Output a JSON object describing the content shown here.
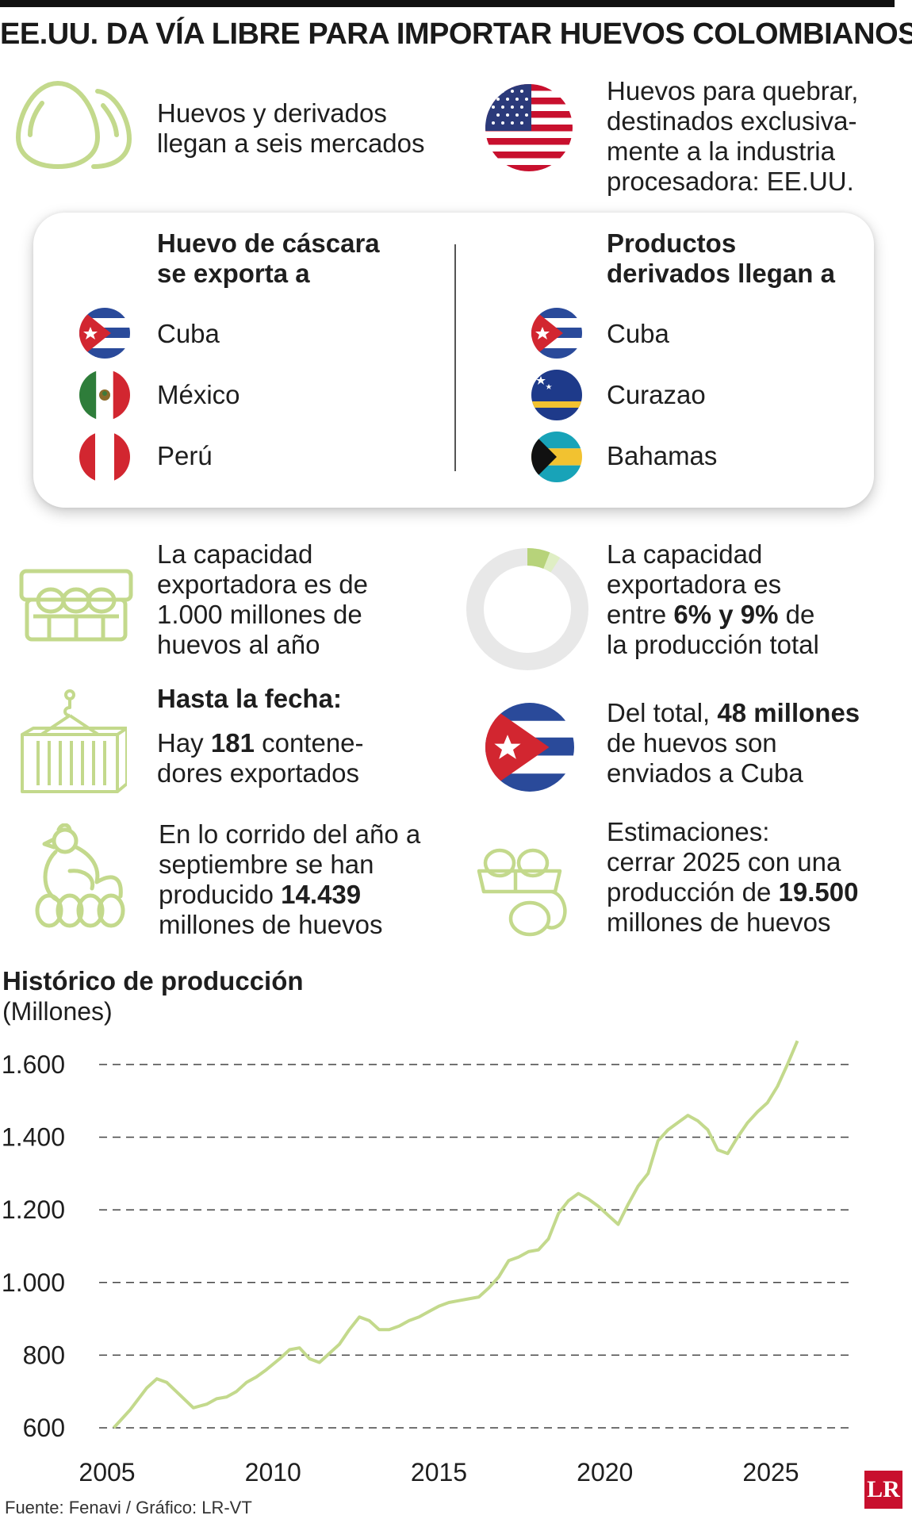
{
  "title": "EE.UU. DA VÍA LIBRE PARA IMPORTAR HUEVOS COLOMBIANOS",
  "top_left": {
    "icon": "eggs-icon",
    "text_l1": "Huevos y derivados",
    "text_l2": "llegan a seis mercados"
  },
  "top_right": {
    "icon": "usa-flag-icon",
    "l1": "Huevos para quebrar,",
    "l2": "destinados exclusiva-",
    "l3": "mente a la industria",
    "l4": "procesadora: EE.UU."
  },
  "card": {
    "left_header_l1": "Huevo de cáscara",
    "left_header_l2": "se exporta a",
    "right_header_l1": "Productos",
    "right_header_l2": "derivados llegan a",
    "left_countries": [
      "Cuba",
      "México",
      "Perú"
    ],
    "right_countries": [
      "Cuba",
      "Curazao",
      "Bahamas"
    ]
  },
  "facts": {
    "capacity_l1": "La capacidad",
    "capacity_l2": "exportadora es de",
    "capacity_l3": "1.000 millones de",
    "capacity_l4": "huevos al año",
    "share_l1": "La capacidad",
    "share_l2": "exportadora es",
    "share_pre": "entre ",
    "share_bold": "6% y 9%",
    "share_post": " de",
    "share_l4": "la producción total",
    "share_low_pct": 6,
    "share_high_pct": 9,
    "todate_header": "Hasta la fecha:",
    "containers_pre": "Hay ",
    "containers_bold": "181",
    "containers_post": " contene-",
    "containers_l2": "dores exportados",
    "cuba_pre": "Del total, ",
    "cuba_bold": "48 millones",
    "cuba_l2": "de huevos son",
    "cuba_l3": "enviados a Cuba",
    "produced_l1": "En lo corrido del año a",
    "produced_l2": "septiembre se han",
    "produced_pre": "producido ",
    "produced_bold": "14.439",
    "produced_l4": "millones de huevos",
    "estim_l1": "Estimaciones:",
    "estim_l2": "cerrar 2025 con una",
    "estim_pre": "producción de ",
    "estim_bold": "19.500",
    "estim_l4": "millones de huevos"
  },
  "colors": {
    "accent_green": "#c3d98c",
    "ring_gray": "#e8e8e8",
    "text": "#1e1e1e",
    "logo_red": "#c8102e"
  },
  "chart_data": {
    "type": "line",
    "title": "Histórico de producción",
    "subtitle": "(Millones)",
    "xlabel": "",
    "ylabel": "",
    "xlim": [
      2005,
      2027
    ],
    "ylim": [
      600,
      1700
    ],
    "yticks": [
      600,
      800,
      1000,
      1200,
      1400,
      1600
    ],
    "ytick_labels": [
      "600",
      "800",
      "1.000",
      "1.200",
      "1.400",
      "1.600"
    ],
    "xticks": [
      2005,
      2010,
      2015,
      2020,
      2025
    ],
    "ytick_grid": [
      800,
      1000,
      1200,
      1400,
      1600
    ],
    "grid": "dashed horizontal",
    "series": [
      {
        "color": "#c3d98c",
        "x": [
          2005.2,
          2005.7,
          2006.2,
          2006.5,
          2006.8,
          2007.2,
          2007.6,
          2008.0,
          2008.3,
          2008.6,
          2008.9,
          2009.2,
          2009.5,
          2009.8,
          2010.2,
          2010.5,
          2010.8,
          2011.1,
          2011.4,
          2011.7,
          2012.0,
          2012.3,
          2012.6,
          2012.9,
          2013.2,
          2013.5,
          2013.8,
          2014.1,
          2014.4,
          2014.7,
          2015.0,
          2015.3,
          2015.6,
          2015.9,
          2016.2,
          2016.5,
          2016.8,
          2017.1,
          2017.4,
          2017.7,
          2018.0,
          2018.3,
          2018.6,
          2018.9,
          2019.2,
          2019.5,
          2019.8,
          2020.1,
          2020.4,
          2020.7,
          2021.0,
          2021.3,
          2021.6,
          2021.9,
          2022.2,
          2022.5,
          2022.8,
          2023.1,
          2023.4,
          2023.7,
          2024.0,
          2024.3,
          2024.6,
          2024.9,
          2025.2,
          2025.5,
          2025.8
        ],
        "y": [
          600,
          650,
          710,
          735,
          725,
          690,
          655,
          665,
          680,
          685,
          700,
          725,
          740,
          760,
          790,
          815,
          820,
          790,
          780,
          805,
          830,
          870,
          905,
          895,
          870,
          870,
          880,
          895,
          905,
          920,
          935,
          945,
          950,
          955,
          960,
          985,
          1015,
          1060,
          1070,
          1085,
          1090,
          1120,
          1190,
          1225,
          1245,
          1230,
          1210,
          1185,
          1160,
          1215,
          1265,
          1300,
          1390,
          1420,
          1440,
          1460,
          1445,
          1420,
          1365,
          1355,
          1400,
          1440,
          1470,
          1495,
          1540,
          1600,
          1665
        ]
      }
    ]
  },
  "source": "Fuente: Fenavi  / Gráfico: LR-VT",
  "logo": "LR"
}
